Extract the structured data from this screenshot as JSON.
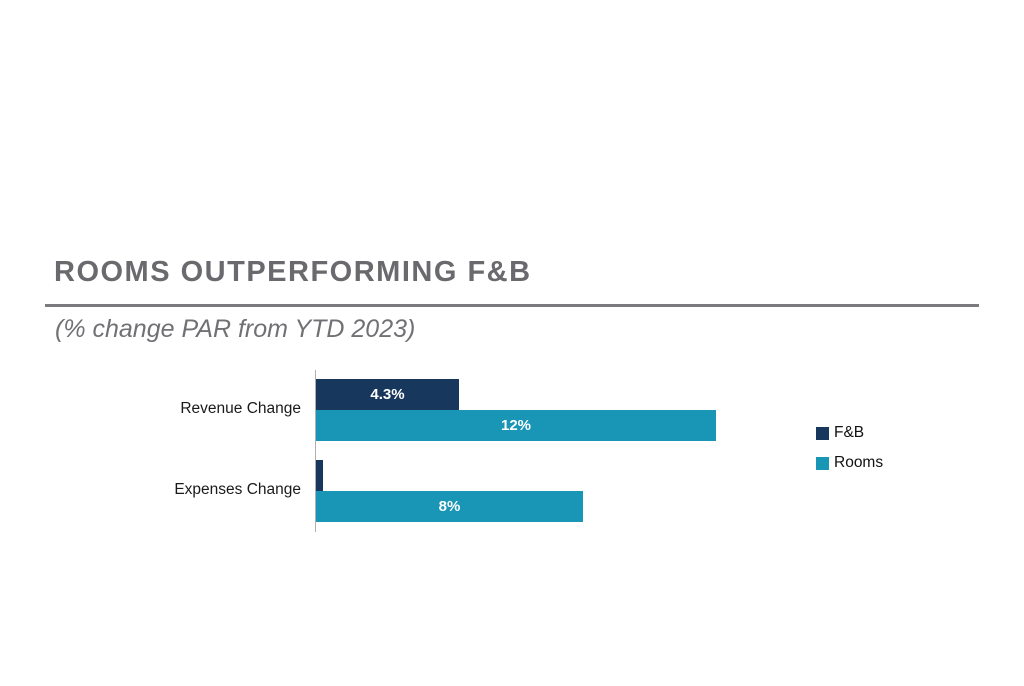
{
  "chart_data": {
    "type": "bar",
    "orientation": "horizontal",
    "title": "ROOMS OUTPERFORMING F&B",
    "subtitle": "(% change PAR from YTD 2023)",
    "categories": [
      "Revenue Change",
      "Expenses Change"
    ],
    "series": [
      {
        "name": "F&B",
        "color": "#17375C",
        "values": [
          4.3,
          0.2
        ],
        "data_labels": [
          "4.3%",
          ""
        ]
      },
      {
        "name": "Rooms",
        "color": "#1995B5",
        "values": [
          12,
          8
        ],
        "data_labels": [
          "12%",
          "8%"
        ]
      }
    ],
    "xlim": [
      0,
      12
    ],
    "unit": "%",
    "grid": false,
    "legend_position": "right",
    "value_label_color": "#FFFFFF"
  },
  "colors": {
    "fnb_navy": "#17375C",
    "rooms_teal": "#1995B5",
    "title_gray": "#6A6A6E",
    "divider_gray": "#7B7B7E",
    "axis_gray": "#B0B0B0",
    "background": "#FFFFFF"
  }
}
